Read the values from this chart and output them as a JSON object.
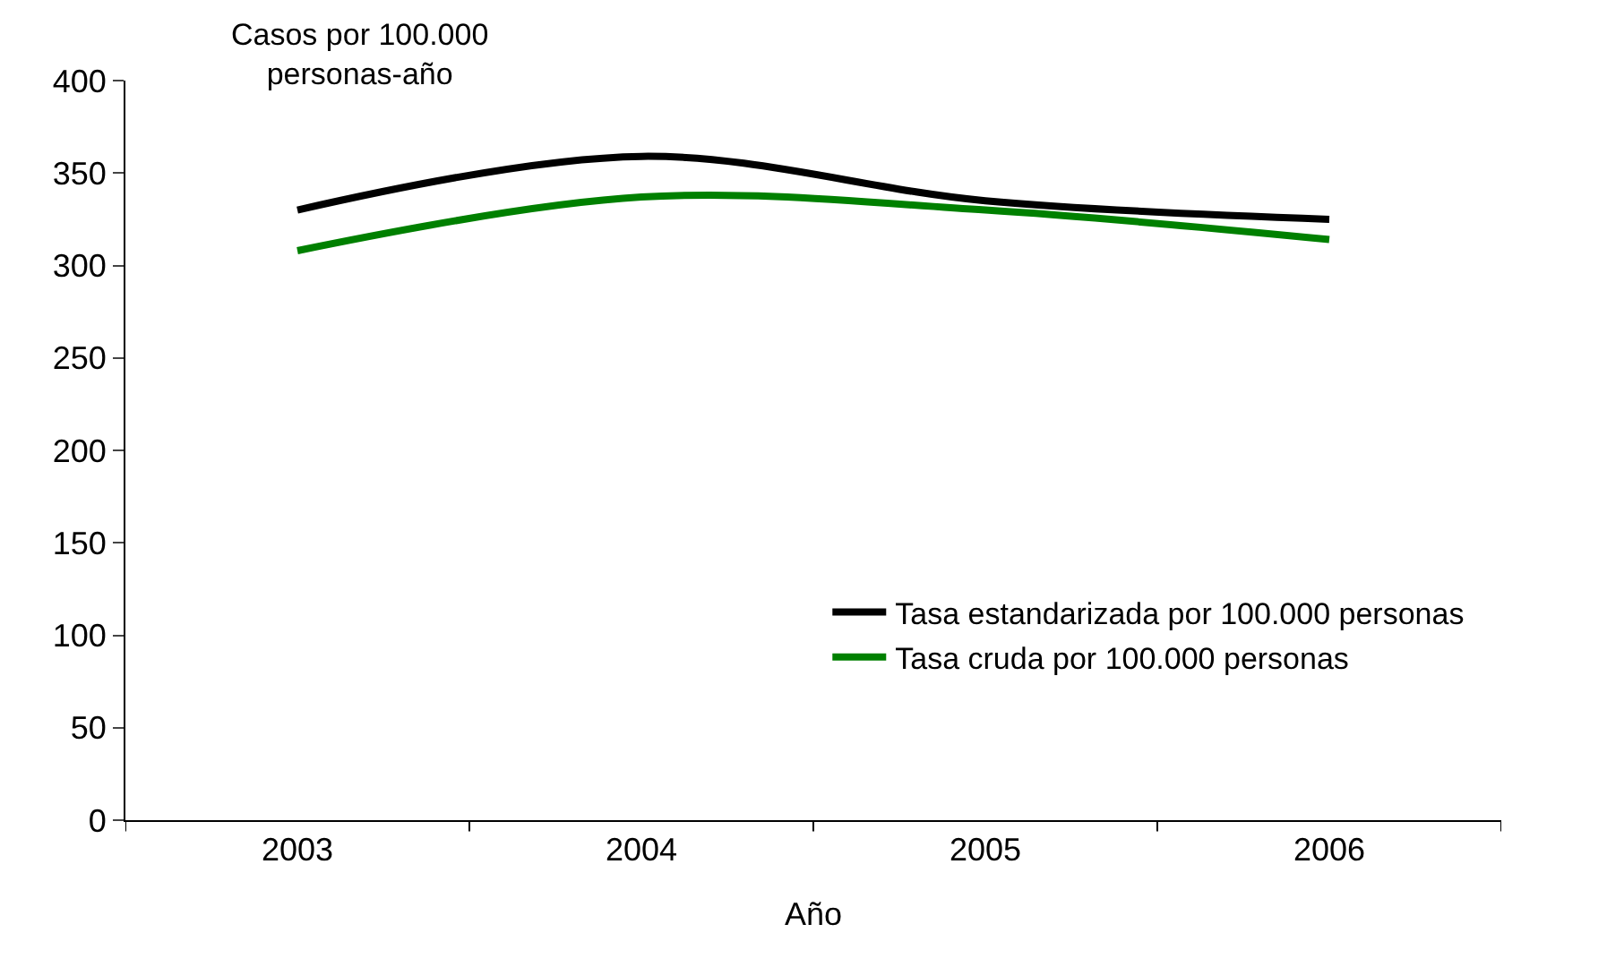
{
  "chart_data": {
    "type": "line",
    "xlabel": "Año",
    "ylabel": "Casos por 100.000\npersonas-año",
    "categories": [
      "2003",
      "2004",
      "2005",
      "2006"
    ],
    "series": [
      {
        "name": "Tasa estandarizada por 100.000 personas",
        "color": "#000000",
        "values": [
          330,
          359,
          335,
          325
        ]
      },
      {
        "name": "Tasa cruda por 100.000 personas",
        "color": "#008000",
        "values": [
          308,
          337,
          330,
          314
        ]
      }
    ],
    "ylim": [
      0,
      400
    ],
    "yticks": [
      0,
      50,
      100,
      150,
      200,
      250,
      300,
      350,
      400
    ],
    "grid": false,
    "legend": "bottom right",
    "marker": "none",
    "line_style": "solid"
  }
}
